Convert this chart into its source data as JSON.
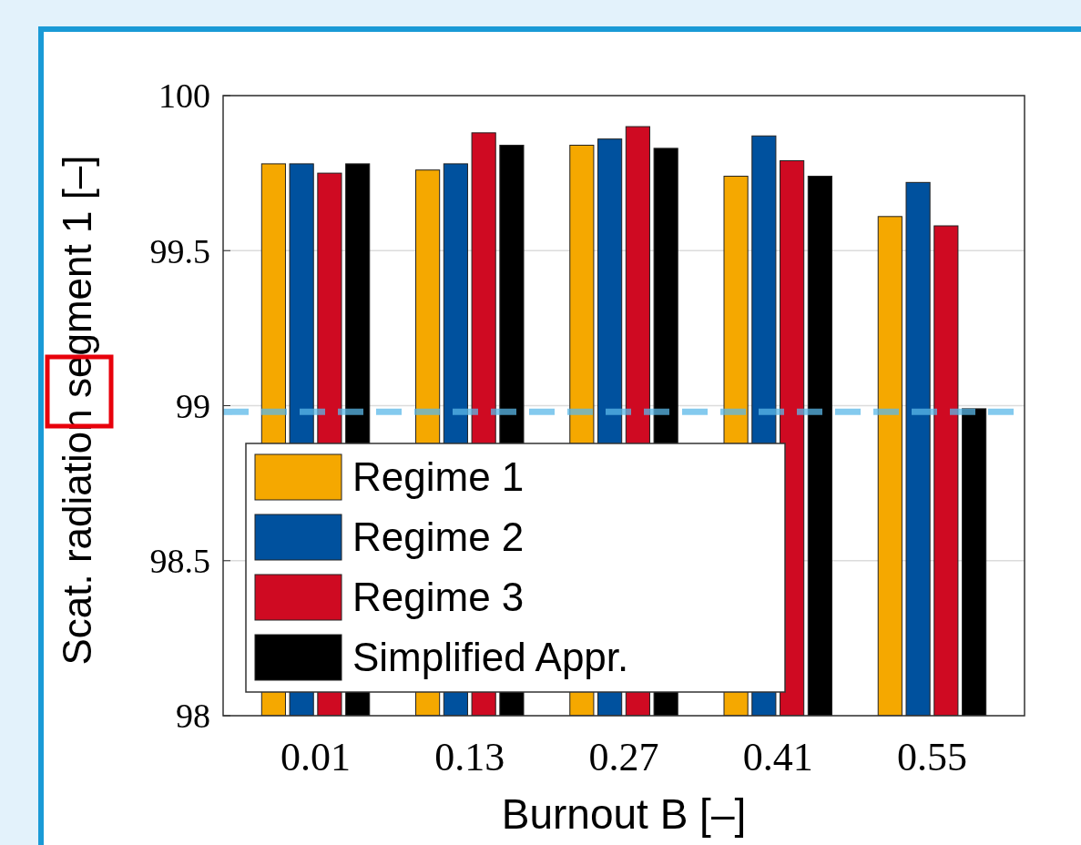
{
  "chart_data": {
    "type": "bar",
    "xlabel": "Burnout B [–]",
    "ylabel": "Scat. radiation segment 1 [–]",
    "categories": [
      "0.01",
      "0.13",
      "0.27",
      "0.41",
      "0.55"
    ],
    "series": [
      {
        "name": "Regime 1",
        "color": "#f5a800",
        "values": [
          99.78,
          99.76,
          99.84,
          99.74,
          99.61
        ]
      },
      {
        "name": "Regime 2",
        "color": "#00519e",
        "values": [
          99.78,
          99.78,
          99.86,
          99.87,
          99.72
        ]
      },
      {
        "name": "Regime 3",
        "color": "#cf0a22",
        "values": [
          99.75,
          99.88,
          99.9,
          99.79,
          99.58
        ]
      },
      {
        "name": "Simplified Appr.",
        "color": "#000000",
        "values": [
          99.78,
          99.84,
          99.83,
          99.74,
          98.99
        ]
      }
    ],
    "ylim": [
      98,
      100
    ],
    "yticks": [
      98,
      98.5,
      99,
      99.5,
      100
    ],
    "grid": "y",
    "legend": "bottom left",
    "ref_lines": [
      {
        "axis": "y",
        "value": 98.98,
        "color": "#5bb8e8",
        "line_style": "dashed"
      }
    ]
  }
}
